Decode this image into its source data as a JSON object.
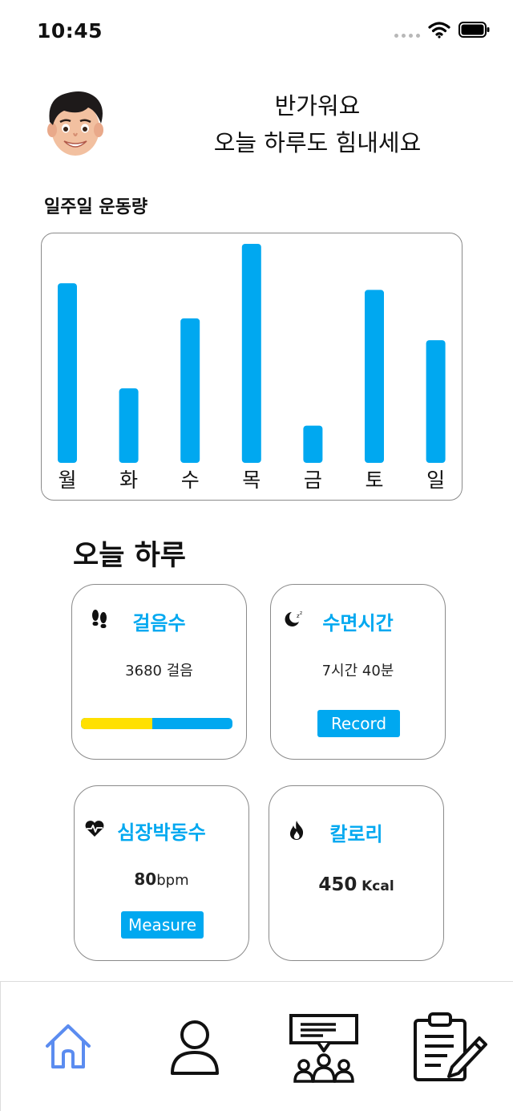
{
  "status_bar": {
    "time": "10:45"
  },
  "header": {
    "greeting_line1": "반가워요",
    "greeting_line2": "오늘 하루도 힘내세요"
  },
  "weekly": {
    "title": "일주일 운동량"
  },
  "chart_data": {
    "type": "bar",
    "categories": [
      "월",
      "화",
      "수",
      "목",
      "금",
      "토",
      "일"
    ],
    "values": [
      82,
      34,
      66,
      100,
      17,
      79,
      56
    ],
    "ylim": [
      0,
      100
    ],
    "color": "#00a8f0",
    "grid": false,
    "title": "일주일 운동량"
  },
  "today": {
    "title": "오늘 하루",
    "steps": {
      "title": "걸음수",
      "value": "3680 걸음",
      "icon": "footprints-icon",
      "progress": 0.47
    },
    "sleep": {
      "title": "수면시간",
      "value": "7시간 40분",
      "button": "Record",
      "icon": "moon-icon"
    },
    "heart": {
      "title": "심장박동수",
      "value_num": "80",
      "value_unit": "bpm",
      "button": "Measure",
      "icon": "heartbeat-icon"
    },
    "calorie": {
      "title": "칼로리",
      "value_num": "450",
      "value_unit": "Kcal",
      "icon": "flame-icon"
    }
  },
  "colors": {
    "accent": "#00a8f0",
    "progress_fill": "#ffe000",
    "nav_active": "#5b8cf0"
  },
  "nav": [
    "home-icon",
    "profile-icon",
    "community-icon",
    "notes-icon"
  ]
}
